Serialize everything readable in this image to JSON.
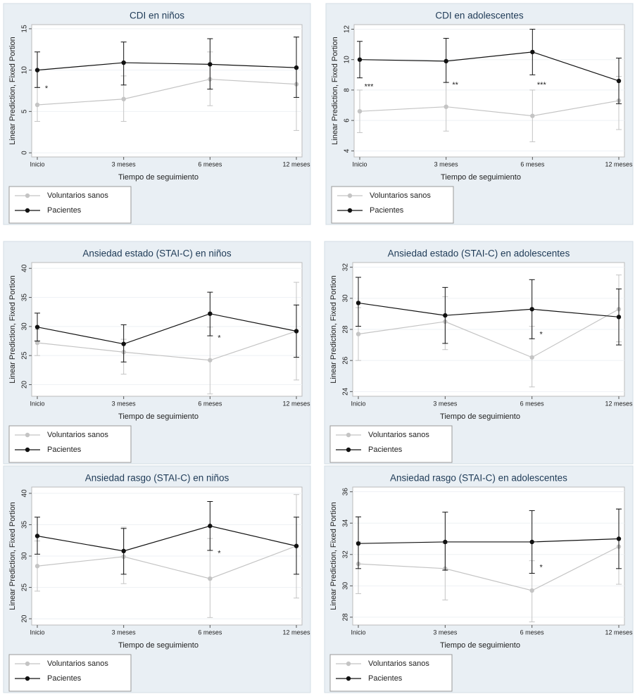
{
  "chart_data": [
    {
      "type": "line",
      "title": "CDI en niños",
      "ylabel": "Linear Prediction, Fixed Portion",
      "xlabel": "Tiempo de seguimiento",
      "categories": [
        "Inicio",
        "3 meses",
        "6 meses",
        "12 meses"
      ],
      "ylim": [
        -0.5,
        15.5
      ],
      "yticks": [
        0,
        5,
        10,
        15
      ],
      "grid": true,
      "annotations": [
        "*",
        null,
        null,
        null
      ],
      "series": [
        {
          "name": "Voluntarios sanos",
          "color": "#c4c4c4",
          "values": [
            5.8,
            6.5,
            8.9,
            8.3
          ],
          "ci_low": [
            3.8,
            3.8,
            5.7,
            2.7
          ],
          "ci_high": [
            7.9,
            9.3,
            12.2,
            14.0
          ]
        },
        {
          "name": "Pacientes",
          "color": "#111111",
          "values": [
            10.0,
            10.9,
            10.7,
            10.3
          ],
          "ci_low": [
            7.9,
            8.2,
            7.7,
            6.7
          ],
          "ci_high": [
            12.2,
            13.4,
            13.8,
            14.0
          ]
        }
      ]
    },
    {
      "type": "line",
      "title": "CDI en adolescentes",
      "ylabel": "Linear Prediction, Fixed Portion",
      "xlabel": "Tiempo de seguimiento",
      "categories": [
        "Inicio",
        "3 meses",
        "6 meses",
        "12 meses"
      ],
      "ylim": [
        3.6,
        12.3
      ],
      "yticks": [
        4,
        6,
        8,
        10,
        12
      ],
      "grid": true,
      "annotations": [
        "***",
        "**",
        "***",
        null
      ],
      "series": [
        {
          "name": "Voluntarios sanos",
          "color": "#c4c4c4",
          "values": [
            6.6,
            6.9,
            6.3,
            7.3
          ],
          "ci_low": [
            5.2,
            5.3,
            4.6,
            5.4
          ],
          "ci_high": [
            8.0,
            8.5,
            8.0,
            8.9
          ]
        },
        {
          "name": "Pacientes",
          "color": "#111111",
          "values": [
            10.0,
            9.9,
            10.5,
            8.6
          ],
          "ci_low": [
            8.8,
            8.5,
            9.0,
            7.1
          ],
          "ci_high": [
            11.2,
            11.4,
            12.0,
            10.1
          ]
        }
      ]
    },
    {
      "type": "line",
      "title": "Ansiedad estado (STAI-C) en niños",
      "ylabel": "Linear Prediction, Fixed Portion",
      "xlabel": "Tiempo de seguimiento",
      "categories": [
        "Inicio",
        "3 meses",
        "6 meses",
        "12 meses"
      ],
      "ylim": [
        18,
        41
      ],
      "yticks": [
        20,
        25,
        30,
        35,
        40
      ],
      "grid": true,
      "annotations": [
        null,
        null,
        "*",
        null
      ],
      "series": [
        {
          "name": "Voluntarios sanos",
          "color": "#c4c4c4",
          "values": [
            27.2,
            25.6,
            24.2,
            29.2
          ],
          "ci_low": [
            25.0,
            21.8,
            18.4,
            20.8
          ],
          "ci_high": [
            29.5,
            27.8,
            29.9,
            37.6
          ]
        },
        {
          "name": "Pacientes",
          "color": "#111111",
          "values": [
            29.9,
            27.0,
            32.2,
            29.2
          ],
          "ci_low": [
            27.5,
            23.9,
            28.4,
            24.7
          ],
          "ci_high": [
            32.3,
            30.3,
            35.9,
            33.7
          ]
        }
      ]
    },
    {
      "type": "line",
      "title": "Ansiedad estado (STAI-C) en adolescentes",
      "ylabel": "Linear Prediction, Fixed Portion",
      "xlabel": "Tiempo de seguimiento",
      "categories": [
        "Inicio",
        "3 meses",
        "6 meses",
        "12 meses"
      ],
      "ylim": [
        23.7,
        32.3
      ],
      "yticks": [
        24,
        26,
        28,
        30,
        32
      ],
      "grid": true,
      "annotations": [
        null,
        null,
        "*",
        null
      ],
      "series": [
        {
          "name": "Voluntarios sanos",
          "color": "#c4c4c4",
          "values": [
            27.7,
            28.5,
            26.2,
            29.3
          ],
          "ci_low": [
            26.0,
            26.7,
            24.3,
            27.2
          ],
          "ci_high": [
            29.4,
            30.1,
            28.2,
            31.5
          ]
        },
        {
          "name": "Pacientes",
          "color": "#111111",
          "values": [
            29.7,
            28.9,
            29.3,
            28.8
          ],
          "ci_low": [
            28.2,
            27.1,
            27.4,
            27.0
          ],
          "ci_high": [
            31.35,
            30.7,
            31.2,
            30.6
          ]
        }
      ]
    },
    {
      "type": "line",
      "title": "Ansiedad rasgo (STAI-C) en niños",
      "ylabel": "Linear Prediction, Fixed Portion",
      "xlabel": "Tiempo de seguimiento",
      "categories": [
        "Inicio",
        "3 meses",
        "6 meses",
        "12 meses"
      ],
      "ylim": [
        19,
        41
      ],
      "yticks": [
        20,
        25,
        30,
        35,
        40
      ],
      "grid": true,
      "annotations": [
        null,
        null,
        "*",
        null
      ],
      "series": [
        {
          "name": "Voluntarios sanos",
          "color": "#c4c4c4",
          "values": [
            28.4,
            29.9,
            26.4,
            31.6
          ],
          "ci_low": [
            24.4,
            25.6,
            20.2,
            23.3
          ],
          "ci_high": [
            32.4,
            34.6,
            32.8,
            39.8
          ]
        },
        {
          "name": "Pacientes",
          "color": "#111111",
          "values": [
            33.2,
            30.8,
            34.8,
            31.6
          ],
          "ci_low": [
            30.3,
            27.1,
            30.9,
            27.1
          ],
          "ci_high": [
            36.2,
            34.4,
            38.7,
            36.2
          ]
        }
      ]
    },
    {
      "type": "line",
      "title": "Ansiedad rasgo (STAI-C) en adolescentes",
      "ylabel": "Linear Prediction, Fixed Portion",
      "xlabel": "Tiempo de seguimiento",
      "categories": [
        "Inicio",
        "3 meses",
        "6 meses",
        "12 meses"
      ],
      "ylim": [
        27.5,
        36.3
      ],
      "yticks": [
        28,
        30,
        32,
        34,
        36
      ],
      "grid": true,
      "annotations": [
        null,
        null,
        "*",
        null
      ],
      "series": [
        {
          "name": "Voluntarios sanos",
          "color": "#c4c4c4",
          "values": [
            31.4,
            31.1,
            29.7,
            32.5
          ],
          "ci_low": [
            29.5,
            29.1,
            27.7,
            30.1
          ],
          "ci_high": [
            32.8,
            32.7,
            31.6,
            34.9
          ]
        },
        {
          "name": "Pacientes",
          "color": "#111111",
          "values": [
            32.7,
            32.8,
            32.8,
            33.0
          ],
          "ci_low": [
            31.1,
            31.0,
            30.8,
            31.1
          ],
          "ci_high": [
            34.4,
            34.7,
            34.8,
            34.9
          ]
        }
      ]
    }
  ]
}
